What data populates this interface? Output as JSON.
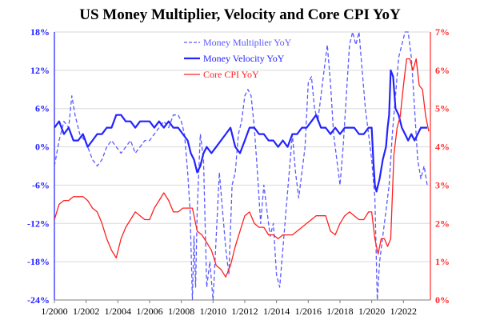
{
  "chart_data": {
    "type": "line",
    "title": "US Money Multiplier, Velocity and Core CPI YoY",
    "x_range": [
      2000.0,
      2023.7
    ],
    "x_tick_labels": [
      "1/2000",
      "1/2002",
      "1/2004",
      "1/2006",
      "1/2008",
      "1/2010",
      "1/2012",
      "1/2014",
      "1/2016",
      "1/2018",
      "1/2020",
      "1/2022"
    ],
    "x_tick_values": [
      2000,
      2002,
      2004,
      2006,
      2008,
      2010,
      2012,
      2014,
      2016,
      2018,
      2020,
      2022
    ],
    "y_left": {
      "range": [
        -24,
        18
      ],
      "ticks": [
        18,
        12,
        6,
        0,
        -6,
        -12,
        -18,
        -24
      ],
      "tick_labels": [
        "18%",
        "12%",
        "6%",
        "0%",
        "-6%",
        "-12%",
        "-18%",
        "-24%"
      ]
    },
    "y_right": {
      "range": [
        0,
        7
      ],
      "ticks": [
        7,
        6,
        5,
        4,
        3,
        2,
        1,
        0
      ],
      "tick_labels": [
        "7%",
        "6%",
        "5%",
        "4%",
        "3%",
        "2%",
        "1%",
        "0%"
      ]
    },
    "legend_position": "top-center",
    "colors": {
      "blue": "#2323ff",
      "red": "#ff2020",
      "dashed_blue": "#5a5aff"
    },
    "series": [
      {
        "name": "Money Multiplier YoY",
        "axis": "left",
        "style": "dashed",
        "x": [
          2000.0,
          2000.3,
          2000.6,
          2000.9,
          2001.1,
          2001.3,
          2001.6,
          2001.9,
          2002.1,
          2002.4,
          2002.7,
          2003.0,
          2003.3,
          2003.6,
          2003.9,
          2004.2,
          2004.5,
          2004.8,
          2005.1,
          2005.4,
          2005.7,
          2006.0,
          2006.3,
          2006.6,
          2006.9,
          2007.2,
          2007.5,
          2007.8,
          2008.0,
          2008.2,
          2008.4,
          2008.55,
          2008.7,
          2008.8,
          2008.9,
          2009.0,
          2009.2,
          2009.4,
          2009.6,
          2009.8,
          2010.0,
          2010.2,
          2010.4,
          2010.6,
          2010.8,
          2011.0,
          2011.2,
          2011.4,
          2011.6,
          2011.8,
          2012.0,
          2012.2,
          2012.4,
          2012.6,
          2012.8,
          2013.0,
          2013.2,
          2013.4,
          2013.6,
          2013.8,
          2014.0,
          2014.2,
          2014.4,
          2014.6,
          2014.8,
          2015.0,
          2015.2,
          2015.4,
          2015.6,
          2015.8,
          2016.0,
          2016.2,
          2016.4,
          2016.6,
          2016.8,
          2017.0,
          2017.2,
          2017.4,
          2017.6,
          2017.8,
          2018.0,
          2018.2,
          2018.4,
          2018.6,
          2018.8,
          2019.0,
          2019.2,
          2019.4,
          2019.6,
          2019.8,
          2020.0,
          2020.2,
          2020.35,
          2020.5,
          2020.7,
          2020.9,
          2021.1,
          2021.3,
          2021.5,
          2021.7,
          2021.9,
          2022.1,
          2022.3,
          2022.5,
          2022.7,
          2022.9,
          2023.1,
          2023.3,
          2023.5
        ],
        "values": [
          -3,
          1,
          4,
          3,
          8,
          5,
          2,
          1,
          0,
          -2,
          -3,
          -2,
          0,
          1,
          0,
          -1,
          0,
          1,
          -1,
          0,
          1,
          1,
          2,
          3,
          4,
          3,
          5,
          5,
          4,
          2,
          -4,
          -10,
          -24,
          -14,
          -22,
          -10,
          2,
          -2,
          -22,
          -18,
          -24,
          -14,
          -4,
          -10,
          -16,
          -20,
          -6,
          -4,
          2,
          4,
          8,
          9,
          8,
          3,
          -4,
          -12,
          -6,
          -10,
          -14,
          -12,
          -20,
          -22,
          -16,
          -10,
          -4,
          2,
          -4,
          -8,
          -4,
          0,
          10,
          11,
          6,
          4,
          8,
          12,
          16,
          10,
          2,
          -2,
          -6,
          0,
          8,
          16,
          18,
          16,
          18,
          12,
          6,
          2,
          -2,
          -8,
          -24,
          -18,
          -14,
          -10,
          -6,
          2,
          8,
          14,
          16,
          18,
          18,
          14,
          6,
          -2,
          -5,
          -3,
          -6
        ]
      },
      {
        "name": "Money Velocity YoY",
        "axis": "left",
        "style": "solid",
        "x": [
          2000.0,
          2000.3,
          2000.6,
          2000.9,
          2001.2,
          2001.5,
          2001.8,
          2002.1,
          2002.4,
          2002.7,
          2003.0,
          2003.3,
          2003.6,
          2003.9,
          2004.2,
          2004.5,
          2004.8,
          2005.1,
          2005.4,
          2005.7,
          2006.0,
          2006.3,
          2006.6,
          2006.9,
          2007.2,
          2007.5,
          2007.8,
          2008.1,
          2008.4,
          2008.6,
          2008.8,
          2009.0,
          2009.2,
          2009.4,
          2009.6,
          2009.9,
          2010.2,
          2010.5,
          2010.8,
          2011.1,
          2011.4,
          2011.7,
          2012.0,
          2012.3,
          2012.6,
          2012.9,
          2013.2,
          2013.5,
          2013.8,
          2014.1,
          2014.4,
          2014.7,
          2015.0,
          2015.3,
          2015.6,
          2015.9,
          2016.2,
          2016.5,
          2016.8,
          2017.1,
          2017.4,
          2017.7,
          2018.0,
          2018.3,
          2018.6,
          2018.9,
          2019.2,
          2019.5,
          2019.8,
          2020.0,
          2020.1,
          2020.2,
          2020.3,
          2020.5,
          2020.7,
          2020.9,
          2021.0,
          2021.1,
          2021.2,
          2021.35,
          2021.5,
          2021.7,
          2021.9,
          2022.1,
          2022.3,
          2022.5,
          2022.7,
          2022.9,
          2023.1,
          2023.3,
          2023.5
        ],
        "values": [
          3,
          4,
          2,
          3,
          1,
          1,
          2,
          0,
          1,
          2,
          2,
          3,
          3,
          5,
          5,
          4,
          4,
          3,
          4,
          4,
          4,
          3,
          4,
          3,
          4,
          3,
          3,
          2,
          1,
          -1,
          -2,
          -4,
          -3,
          -1,
          0,
          -1,
          0,
          1,
          2,
          3,
          0,
          -1,
          1,
          3,
          3,
          2,
          2,
          1,
          1,
          0,
          1,
          0,
          2,
          2,
          3,
          3,
          4,
          5,
          3,
          3,
          2,
          3,
          2,
          3,
          3,
          3,
          2,
          2,
          3,
          3,
          -2,
          -6,
          -7,
          -5,
          -2,
          0,
          3,
          5,
          12,
          11,
          6,
          5,
          3,
          2,
          1,
          2,
          1,
          2,
          3,
          3,
          3
        ]
      },
      {
        "name": "Core CPI YoY",
        "axis": "right",
        "style": "solid",
        "x": [
          2000.0,
          2000.3,
          2000.6,
          2000.9,
          2001.2,
          2001.5,
          2001.8,
          2002.1,
          2002.4,
          2002.7,
          2003.0,
          2003.3,
          2003.6,
          2003.9,
          2004.2,
          2004.5,
          2004.8,
          2005.1,
          2005.4,
          2005.7,
          2006.0,
          2006.3,
          2006.6,
          2006.9,
          2007.2,
          2007.5,
          2007.8,
          2008.1,
          2008.4,
          2008.7,
          2009.0,
          2009.3,
          2009.6,
          2009.9,
          2010.2,
          2010.5,
          2010.8,
          2011.1,
          2011.4,
          2011.7,
          2012.0,
          2012.3,
          2012.6,
          2012.9,
          2013.2,
          2013.5,
          2013.8,
          2014.1,
          2014.4,
          2014.7,
          2015.0,
          2015.3,
          2015.6,
          2015.9,
          2016.2,
          2016.5,
          2016.8,
          2017.1,
          2017.4,
          2017.7,
          2018.0,
          2018.3,
          2018.6,
          2018.9,
          2019.2,
          2019.5,
          2019.8,
          2020.0,
          2020.2,
          2020.4,
          2020.6,
          2020.8,
          2021.0,
          2021.2,
          2021.4,
          2021.6,
          2021.8,
          2022.0,
          2022.2,
          2022.4,
          2022.6,
          2022.8,
          2023.0,
          2023.2,
          2023.4,
          2023.6
        ],
        "values": [
          2.1,
          2.5,
          2.6,
          2.6,
          2.7,
          2.7,
          2.7,
          2.6,
          2.4,
          2.3,
          2.0,
          1.6,
          1.3,
          1.1,
          1.6,
          1.9,
          2.1,
          2.3,
          2.2,
          2.1,
          2.1,
          2.4,
          2.6,
          2.8,
          2.6,
          2.3,
          2.3,
          2.4,
          2.4,
          2.4,
          1.8,
          1.7,
          1.5,
          1.3,
          0.9,
          0.8,
          0.6,
          0.9,
          1.4,
          1.8,
          2.2,
          2.3,
          2.0,
          1.9,
          1.9,
          1.7,
          1.7,
          1.6,
          1.7,
          1.7,
          1.7,
          1.8,
          1.9,
          2.0,
          2.1,
          2.2,
          2.2,
          2.2,
          1.8,
          1.7,
          2.0,
          2.2,
          2.3,
          2.2,
          2.1,
          2.1,
          2.3,
          2.3,
          1.6,
          1.2,
          1.6,
          1.6,
          1.4,
          1.6,
          3.8,
          4.5,
          4.8,
          5.6,
          6.3,
          6.3,
          6.0,
          6.3,
          5.6,
          5.5,
          4.8,
          4.4
        ]
      }
    ]
  }
}
